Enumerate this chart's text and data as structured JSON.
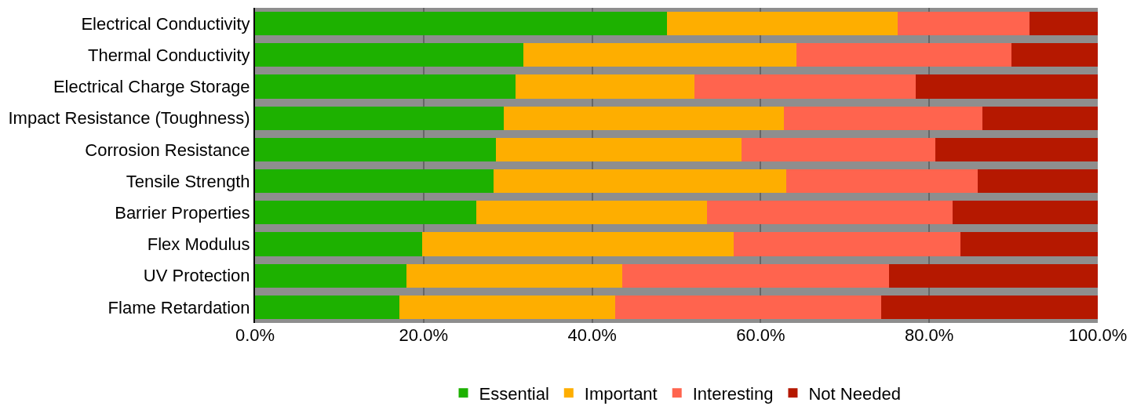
{
  "chart_data": {
    "type": "bar",
    "orientation": "horizontal",
    "stacked": true,
    "categories": [
      "Electrical Conductivity",
      "Thermal Conductivity",
      "Electrical Charge Storage",
      "Impact Resistance (Toughness)",
      "Corrosion Resistance",
      "Tensile Strength",
      "Barrier Properties",
      "Flex Modulus",
      "UV Protection",
      "Flame Retardation"
    ],
    "series": [
      {
        "name": "Essential",
        "color": "#1db100",
        "values": [
          48.9,
          31.8,
          30.9,
          29.5,
          28.6,
          28.3,
          26.3,
          19.8,
          18.0,
          17.1
        ]
      },
      {
        "name": "Important",
        "color": "#feae00",
        "values": [
          27.4,
          32.4,
          21.2,
          33.3,
          29.1,
          34.7,
          27.3,
          37.0,
          25.6,
          25.6
        ]
      },
      {
        "name": "Interesting",
        "color": "#ff644e",
        "values": [
          15.6,
          25.6,
          26.3,
          23.5,
          23.0,
          22.8,
          29.2,
          26.9,
          31.6,
          31.6
        ]
      },
      {
        "name": "Not Needed",
        "color": "#b51800",
        "values": [
          8.1,
          10.2,
          21.6,
          13.7,
          19.3,
          14.2,
          17.2,
          16.3,
          24.8,
          25.7
        ]
      }
    ],
    "xlim": [
      0,
      100
    ],
    "xticks": [
      {
        "value": 0,
        "label": "0.0%"
      },
      {
        "value": 20,
        "label": "20.0%"
      },
      {
        "value": 40,
        "label": "40.0%"
      },
      {
        "value": 60,
        "label": "60.0%"
      },
      {
        "value": 80,
        "label": "80.0%"
      },
      {
        "value": 100,
        "label": "100.0%"
      }
    ],
    "grid": "x",
    "legend": "bottom"
  }
}
